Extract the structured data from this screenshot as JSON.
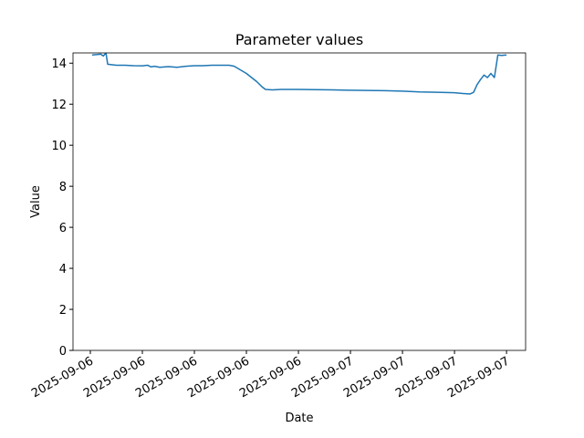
{
  "chart_data": {
    "type": "line",
    "title": "Parameter values",
    "x_label": "Date",
    "y_label": "Value",
    "x": [
      9.1,
      9.4,
      9.6,
      9.75,
      9.9,
      10.0,
      10.5,
      11,
      11.5,
      12,
      12.3,
      12.5,
      12.7,
      13,
      13.5,
      14,
      14.5,
      15,
      15.5,
      16,
      16.5,
      17,
      17.3,
      17.6,
      18,
      18.3,
      18.6,
      18.9,
      19.1,
      19.5,
      20,
      21,
      22,
      23,
      24,
      25,
      26,
      27,
      28,
      29,
      30,
      30.5,
      30.9,
      31.1,
      31.3,
      31.5,
      31.7,
      31.9,
      32.1,
      32.3,
      32.5,
      32.7,
      33.0
    ],
    "values": [
      14.4,
      14.42,
      14.44,
      14.35,
      14.5,
      13.95,
      13.9,
      13.9,
      13.88,
      13.87,
      13.9,
      13.82,
      13.85,
      13.8,
      13.83,
      13.8,
      13.85,
      13.88,
      13.88,
      13.9,
      13.9,
      13.9,
      13.85,
      13.7,
      13.5,
      13.3,
      13.1,
      12.85,
      12.72,
      12.7,
      12.72,
      12.72,
      12.71,
      12.7,
      12.68,
      12.67,
      12.66,
      12.64,
      12.6,
      12.58,
      12.56,
      12.52,
      12.5,
      12.58,
      12.95,
      13.2,
      13.42,
      13.3,
      13.5,
      13.3,
      14.4,
      14.38,
      14.4
    ],
    "color": "#1f77b4",
    "xlim": [
      8.0,
      34.1
    ],
    "xticks": [
      {
        "value": 9,
        "label": "2025-09-06"
      },
      {
        "value": 12,
        "label": "2025-09-06"
      },
      {
        "value": 15,
        "label": "2025-09-06"
      },
      {
        "value": 18,
        "label": "2025-09-06"
      },
      {
        "value": 21,
        "label": "2025-09-06"
      },
      {
        "value": 24,
        "label": "2025-09-07"
      },
      {
        "value": 27,
        "label": "2025-09-07"
      },
      {
        "value": 30,
        "label": "2025-09-07"
      },
      {
        "value": 33,
        "label": "2025-09-07"
      }
    ],
    "ylim": [
      0,
      14.5
    ],
    "yticks": [
      0,
      2,
      4,
      6,
      8,
      10,
      12,
      14
    ],
    "grid": false
  }
}
